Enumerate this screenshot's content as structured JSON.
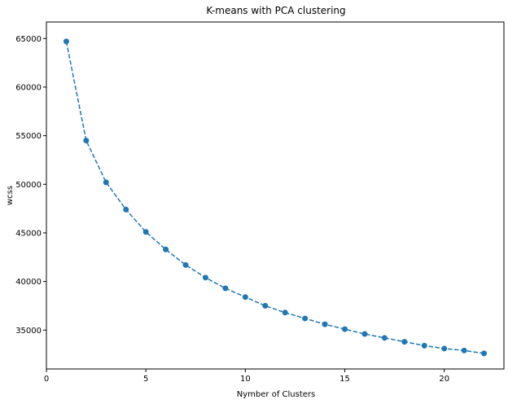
{
  "chart_data": {
    "type": "line",
    "title": "K-means with PCA clustering",
    "xlabel": "Nymber of Clusters",
    "ylabel": "wcss",
    "xlim": [
      0,
      23
    ],
    "ylim": [
      31000,
      66700
    ],
    "xticks": [
      0,
      5,
      10,
      15,
      20
    ],
    "yticks": [
      35000,
      40000,
      45000,
      50000,
      55000,
      60000,
      65000
    ],
    "grid": false,
    "line_style": "dashed",
    "marker": "circle",
    "color": "#1f77b4",
    "series": [
      {
        "x": [
          1,
          2,
          3,
          4,
          5,
          6,
          7,
          8,
          9,
          10,
          11,
          12,
          13,
          14,
          15,
          16,
          17,
          18,
          19,
          20,
          21,
          22
        ],
        "values": [
          64700,
          54500,
          50200,
          47400,
          45100,
          43300,
          41700,
          40400,
          39300,
          38400,
          37500,
          36800,
          36200,
          35600,
          35100,
          34600,
          34200,
          33800,
          33400,
          33100,
          32900,
          32600
        ]
      }
    ]
  }
}
